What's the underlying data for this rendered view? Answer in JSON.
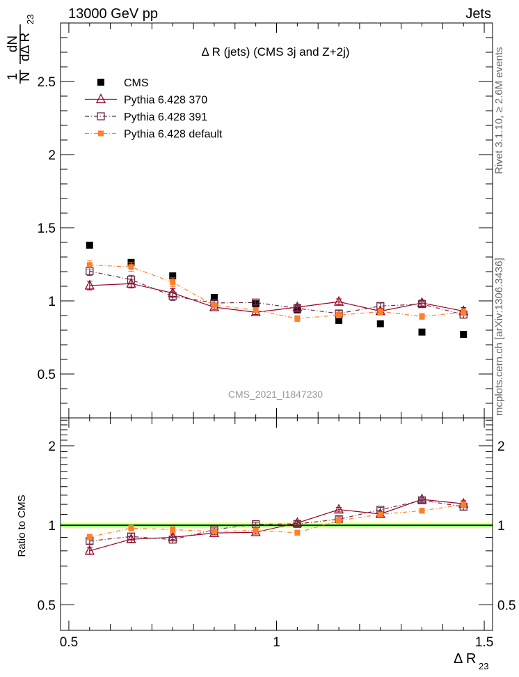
{
  "header": {
    "left": "13000 GeV pp",
    "right": "Jets"
  },
  "side_text": {
    "rivet": "Rivet 3.1.10, ≥ 2.6M events",
    "mcplots": "mcplots.cern.ch [arXiv:1306.3436]"
  },
  "chart_data": [
    {
      "type": "scatter",
      "title": "Δ R (jets) (CMS 3j and Z+2j)",
      "watermark": "CMS_2021_I1847230",
      "ylabel": {
        "num": "1",
        "den": "N",
        "dnum": "dN",
        "dden": "dΔ R",
        "sub": "23"
      },
      "xlabel": {
        "main": "Δ R",
        "sub": "23"
      },
      "xlim": [
        0.48,
        1.52
      ],
      "ylim": [
        0.2,
        2.9
      ],
      "xticks": [
        "0.5",
        "1",
        "1.5"
      ],
      "yticks": [
        "0.5",
        "1",
        "1.5",
        "2",
        "2.5"
      ],
      "legend_position": "top-left",
      "x": [
        0.55,
        0.65,
        0.75,
        0.85,
        0.95,
        1.05,
        1.15,
        1.25,
        1.35,
        1.45
      ],
      "series": [
        {
          "name": "CMS",
          "color": "#000000",
          "marker": "filled-square",
          "line": "none",
          "values": [
            1.381,
            1.263,
            1.171,
            1.024,
            0.98,
            0.938,
            0.867,
            0.843,
            0.787,
            0.771
          ],
          "errors": [
            0.01,
            0.01,
            0.01,
            0.01,
            0.01,
            0.01,
            0.01,
            0.01,
            0.01,
            0.01
          ]
        },
        {
          "name": "Pythia 6.428 370",
          "color": "#990022",
          "marker": "open-triangle",
          "line": "solid",
          "values": [
            1.105,
            1.118,
            1.054,
            0.957,
            0.922,
            0.957,
            0.994,
            0.93,
            0.986,
            0.93
          ],
          "errors": [
            0.03,
            0.03,
            0.03,
            0.015,
            0.015,
            0.02,
            0.02,
            0.02,
            0.02,
            0.025
          ]
        },
        {
          "name": "Pythia 6.428 391",
          "color": "#6b2b4b",
          "marker": "open-square",
          "line": "dashdot",
          "values": [
            1.203,
            1.145,
            1.033,
            0.986,
            0.989,
            0.949,
            0.914,
            0.965,
            0.978,
            0.906
          ],
          "errors": [
            0.03,
            0.03,
            0.03,
            0.015,
            0.015,
            0.02,
            0.02,
            0.02,
            0.02,
            0.025
          ]
        },
        {
          "name": "Pythia 6.428 default",
          "color": "#ff7f2a",
          "marker": "filled-square",
          "line": "dashdot",
          "values": [
            1.246,
            1.232,
            1.127,
            0.97,
            0.937,
            0.879,
            0.903,
            0.927,
            0.894,
            0.922
          ],
          "errors": [
            0.03,
            0.03,
            0.03,
            0.015,
            0.015,
            0.02,
            0.02,
            0.02,
            0.02,
            0.025
          ]
        }
      ]
    },
    {
      "type": "scatter",
      "ylabel": "Ratio to CMS",
      "yscale": "log",
      "ylim": [
        0.4,
        2.55
      ],
      "yticks": [
        "0.5",
        "1",
        "2"
      ],
      "band_inner": 0.012,
      "band_outer": 0.025,
      "band_colors": {
        "inner": "#7cfc7c",
        "outer": "#ffff88"
      }
    }
  ]
}
